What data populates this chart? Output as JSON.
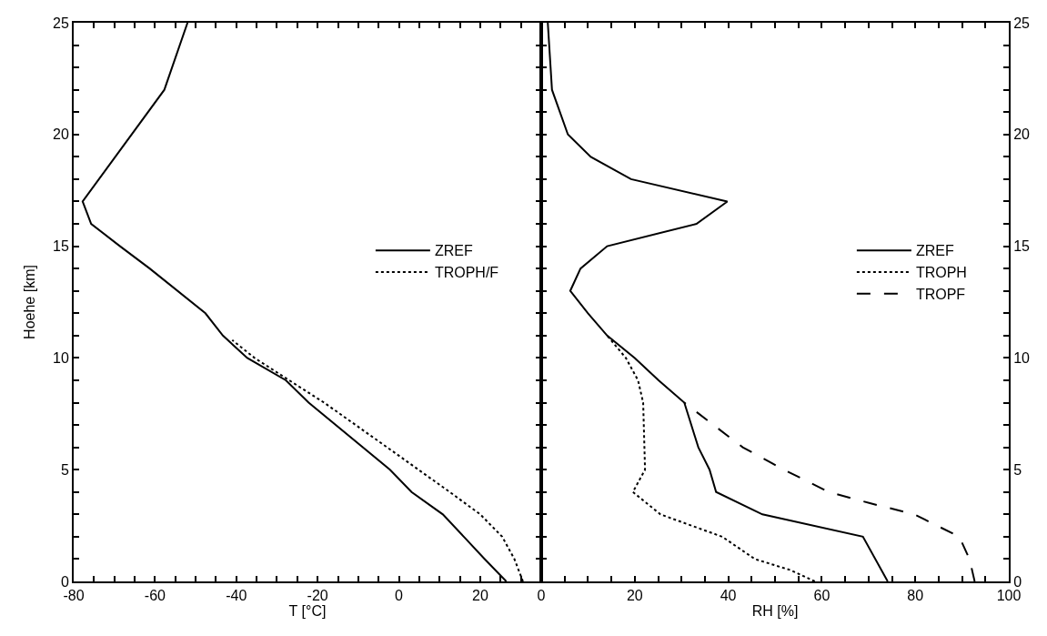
{
  "chart_data": [
    {
      "type": "line",
      "xlabel": "T [°C]",
      "ylabel": "Hoehe [km]",
      "xlim": [
        -80,
        35
      ],
      "ylim": [
        0,
        25
      ],
      "xticks": [
        -80,
        {
          "value": -75,
          "label": null
        },
        {
          "value": -70,
          "label": null
        },
        {
          "value": -65,
          "label": null
        },
        -60,
        {
          "value": -55,
          "label": null
        },
        {
          "value": -50,
          "label": null
        },
        {
          "value": -45,
          "label": null
        },
        -40,
        {
          "value": -35,
          "label": null
        },
        {
          "value": -30,
          "label": null
        },
        {
          "value": -25,
          "label": null
        },
        -20,
        {
          "value": -15,
          "label": null
        },
        {
          "value": -10,
          "label": null
        },
        {
          "value": -5,
          "label": null
        },
        0,
        {
          "value": 5,
          "label": null
        },
        {
          "value": 10,
          "label": null
        },
        {
          "value": 15,
          "label": null
        },
        20,
        {
          "value": 25,
          "label": null
        },
        {
          "value": 30,
          "label": null
        }
      ],
      "yticks": [
        0,
        {
          "value": 1,
          "label": null
        },
        {
          "value": 2,
          "label": null
        },
        {
          "value": 3,
          "label": null
        },
        {
          "value": 4,
          "label": null
        },
        5,
        {
          "value": 6,
          "label": null
        },
        {
          "value": 7,
          "label": null
        },
        {
          "value": 8,
          "label": null
        },
        {
          "value": 9,
          "label": null
        },
        10,
        {
          "value": 11,
          "label": null
        },
        {
          "value": 12,
          "label": null
        },
        {
          "value": 13,
          "label": null
        },
        {
          "value": 14,
          "label": null
        },
        15,
        {
          "value": 16,
          "label": null
        },
        {
          "value": 17,
          "label": null
        },
        {
          "value": 18,
          "label": null
        },
        {
          "value": 19,
          "label": null
        },
        20,
        {
          "value": 21,
          "label": null
        },
        {
          "value": 22,
          "label": null
        },
        {
          "value": 23,
          "label": null
        },
        {
          "value": 24,
          "label": null
        },
        25
      ],
      "legend": "right",
      "series": [
        {
          "name": "ZREF",
          "color": "#000000",
          "line_style": "solid",
          "x": [
            26.4,
            21.1,
            10.8,
            3.1,
            -2.2,
            -22.2,
            -27.8,
            -37.3,
            -43.3,
            -47.6,
            -61.3,
            -68.6,
            -75.7,
            -77.8,
            -57.7,
            -52
          ],
          "values": [
            0,
            1,
            3,
            4,
            5,
            8,
            9,
            10,
            11,
            12,
            14,
            15,
            16,
            17,
            22,
            25
          ]
        },
        {
          "name": "TROPH/F",
          "color": "#000000",
          "line_style": "dotted",
          "x": [
            30.5,
            28.4,
            25.4,
            20,
            12.5,
            4.8,
            -2.9,
            -18.4,
            -27,
            -35.5,
            -41
          ],
          "values": [
            0,
            1,
            2,
            3,
            4,
            5,
            6,
            8,
            9,
            10,
            10.8
          ]
        }
      ]
    },
    {
      "type": "line",
      "xlabel": "RH [%]",
      "xlim": [
        0,
        100
      ],
      "ylim": [
        0,
        25
      ],
      "xticks": [
        0,
        {
          "value": 5,
          "label": null
        },
        {
          "value": 10,
          "label": null
        },
        {
          "value": 15,
          "label": null
        },
        20,
        {
          "value": 25,
          "label": null
        },
        {
          "value": 30,
          "label": null
        },
        {
          "value": 35,
          "label": null
        },
        40,
        {
          "value": 45,
          "label": null
        },
        {
          "value": 50,
          "label": null
        },
        {
          "value": 55,
          "label": null
        },
        60,
        {
          "value": 65,
          "label": null
        },
        {
          "value": 70,
          "label": null
        },
        {
          "value": 75,
          "label": null
        },
        80,
        {
          "value": 85,
          "label": null
        },
        {
          "value": 90,
          "label": null
        },
        {
          "value": 95,
          "label": null
        },
        100
      ],
      "yticks": [
        0,
        {
          "value": 1,
          "label": null
        },
        {
          "value": 2,
          "label": null
        },
        {
          "value": 3,
          "label": null
        },
        {
          "value": 4,
          "label": null
        },
        5,
        {
          "value": 6,
          "label": null
        },
        {
          "value": 7,
          "label": null
        },
        {
          "value": 8,
          "label": null
        },
        {
          "value": 9,
          "label": null
        },
        10,
        {
          "value": 11,
          "label": null
        },
        {
          "value": 12,
          "label": null
        },
        {
          "value": 13,
          "label": null
        },
        {
          "value": 14,
          "label": null
        },
        15,
        {
          "value": 16,
          "label": null
        },
        {
          "value": 17,
          "label": null
        },
        {
          "value": 18,
          "label": null
        },
        {
          "value": 19,
          "label": null
        },
        20,
        {
          "value": 21,
          "label": null
        },
        {
          "value": 22,
          "label": null
        },
        {
          "value": 23,
          "label": null
        },
        {
          "value": 24,
          "label": null
        },
        25
      ],
      "legend": "right",
      "series": [
        {
          "name": "ZREF",
          "color": "#000000",
          "line_style": "solid",
          "x": [
            74.1,
            68.8,
            47.3,
            37.4,
            36,
            33.6,
            30.6,
            25.1,
            20,
            14.1,
            10,
            6.2,
            8.4,
            14.1,
            33.2,
            39.8,
            19.2,
            10.6,
            5.7,
            2.3,
            1.4
          ],
          "values": [
            0,
            2,
            3,
            4,
            5,
            6,
            8,
            9,
            10,
            11,
            12,
            13,
            14,
            15,
            16,
            17,
            18,
            19,
            20,
            22,
            25
          ]
        },
        {
          "name": "TROPH",
          "color": "#000000",
          "line_style": "dotted",
          "x": [
            58.5,
            53.4,
            45.7,
            38.7,
            32.1,
            25.5,
            19.6,
            22.2,
            21.8,
            20.7,
            18.1,
            14.1
          ],
          "values": [
            0,
            0.5,
            1,
            2,
            2.5,
            3,
            4,
            5,
            8,
            9,
            10,
            11
          ]
        },
        {
          "name": "TROPF",
          "color": "#000000",
          "line_style": "dashed",
          "x": [
            92.7,
            91.6,
            89.4,
            79.8,
            70.3,
            61.5,
            51.9,
            43.1,
            30.6
          ],
          "values": [
            0,
            1,
            2,
            3,
            3.5,
            4,
            5,
            6,
            8
          ]
        }
      ]
    }
  ]
}
